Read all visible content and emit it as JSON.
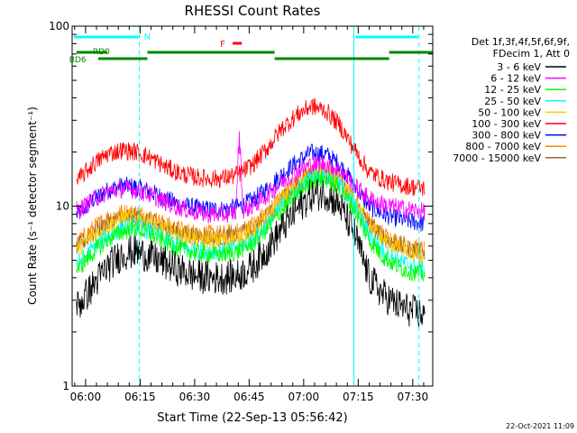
{
  "chart_data": {
    "type": "line",
    "title": "RHESSI Count Rates",
    "xlabel": "Start Time (22-Sep-13 05:56:42)",
    "ylabel": "Count Rate (s⁻¹ detector segment⁻¹)",
    "yscale": "log",
    "ylim": [
      1,
      100
    ],
    "y_ticks": [
      1,
      10,
      100
    ],
    "y_tick_labels": [
      "1",
      "10",
      "100"
    ],
    "xlim_minutes": [
      -3.7,
      95.5
    ],
    "x_ticks_minutes": [
      0,
      15,
      30,
      45,
      60,
      75,
      90
    ],
    "x_tick_labels": [
      "06:00",
      "06:15",
      "06:30",
      "06:45",
      "07:00",
      "07:15",
      "07:30"
    ],
    "legend": {
      "placement": "right",
      "header1": "Det 1f,3f,4f,5f,6f,9f,",
      "header2": "FDecim 1, Att 0"
    },
    "x_minutes": [
      -2,
      2,
      6,
      10,
      14,
      18,
      22,
      26,
      30,
      34,
      38,
      42,
      46,
      50,
      54,
      58,
      62,
      66,
      70,
      74,
      78,
      82,
      86,
      90,
      93
    ],
    "series": [
      {
        "name": "3 - 6 keV",
        "color": "#000000",
        "values": [
          2.8,
          3.6,
          4.6,
          5.4,
          5.6,
          5.2,
          4.8,
          4.4,
          4.1,
          4.0,
          4.0,
          4.1,
          4.6,
          5.8,
          7.5,
          9.5,
          11.5,
          11.8,
          10.0,
          7.0,
          4.0,
          3.2,
          2.8,
          2.6,
          2.5
        ]
      },
      {
        "name": "6 - 12 keV",
        "color": "#ff00ff",
        "values": [
          9.5,
          10.8,
          12.0,
          12.5,
          12.3,
          11.5,
          10.5,
          9.8,
          9.3,
          9.0,
          9.0,
          9.3,
          10.0,
          11.5,
          13.5,
          15.5,
          17.0,
          17.2,
          15.8,
          13.0,
          11.0,
          10.2,
          9.8,
          9.5,
          9.3
        ]
      },
      {
        "name": "12 - 25 keV",
        "color": "#00ff00",
        "values": [
          4.5,
          5.5,
          6.5,
          7.2,
          7.5,
          7.0,
          6.3,
          5.8,
          5.5,
          5.4,
          5.4,
          5.6,
          6.2,
          7.5,
          9.5,
          11.5,
          13.8,
          14.2,
          12.5,
          9.5,
          6.5,
          5.2,
          4.6,
          4.3,
          4.2
        ]
      },
      {
        "name": "25 - 50 keV",
        "color": "#00ffff",
        "values": [
          4.8,
          5.8,
          6.8,
          7.5,
          7.8,
          7.2,
          6.5,
          6.0,
          5.7,
          5.6,
          5.6,
          5.8,
          6.5,
          7.8,
          10.0,
          12.0,
          14.5,
          15.0,
          13.0,
          10.0,
          7.0,
          5.6,
          5.0,
          4.6,
          4.4
        ]
      },
      {
        "name": "50 - 100 keV",
        "color": "#ffcc00",
        "values": [
          5.8,
          6.8,
          7.8,
          8.5,
          8.7,
          8.1,
          7.4,
          6.9,
          6.6,
          6.5,
          6.5,
          6.7,
          7.4,
          8.6,
          10.8,
          12.8,
          15.0,
          15.3,
          13.5,
          10.5,
          7.8,
          6.5,
          5.9,
          5.5,
          5.3
        ]
      },
      {
        "name": "100 - 300 keV",
        "color": "#ff0000",
        "values": [
          14.0,
          17.0,
          19.5,
          20.5,
          20.0,
          18.5,
          16.5,
          15.2,
          14.5,
          14.2,
          14.3,
          15.0,
          17.0,
          21.0,
          27.0,
          32.0,
          36.0,
          34.0,
          28.0,
          20.5,
          15.5,
          14.0,
          13.2,
          12.8,
          12.6
        ]
      },
      {
        "name": "300 - 800 keV",
        "color": "#0000ff",
        "values": [
          9.0,
          10.8,
          12.2,
          13.0,
          12.8,
          12.0,
          11.0,
          10.2,
          9.8,
          9.6,
          9.6,
          9.9,
          10.8,
          12.5,
          15.0,
          17.5,
          19.8,
          19.5,
          17.0,
          13.0,
          10.0,
          9.0,
          8.5,
          8.2,
          8.0
        ]
      },
      {
        "name": "800 - 7000 keV",
        "color": "#ff8800",
        "values": [
          6.3,
          7.5,
          8.6,
          9.2,
          9.2,
          8.6,
          7.9,
          7.4,
          7.1,
          7.0,
          7.0,
          7.2,
          7.9,
          9.2,
          11.3,
          13.4,
          15.5,
          15.8,
          14.0,
          11.0,
          8.2,
          6.9,
          6.3,
          5.9,
          5.7
        ]
      },
      {
        "name": "7000 - 15000 keV",
        "color": "#996633",
        "values": [
          6.0,
          7.0,
          8.0,
          8.6,
          8.7,
          8.2,
          7.6,
          7.1,
          6.8,
          6.7,
          6.7,
          6.9,
          7.5,
          8.8,
          10.8,
          12.8,
          14.8,
          15.0,
          13.3,
          10.5,
          7.9,
          6.7,
          6.1,
          5.7,
          5.5
        ]
      }
    ],
    "flare_spike": {
      "x_minutes": 42.3,
      "series": "6 - 12 keV",
      "value": 24
    },
    "annotations": {
      "night_label": "N",
      "saa_label": "F",
      "rd0_label": "RD0",
      "bd6_label": "BD6",
      "night_intervals_minutes": [
        [
          -3.7,
          14.8
        ],
        [
          73.8,
          91.7
        ]
      ],
      "saa_markers_minutes": [
        [
          37.5,
          40.0
        ]
      ],
      "rd0_segments_minutes": [
        [
          -2.5,
          6.0
        ],
        [
          17.0,
          52.0
        ],
        [
          83.5,
          95.5
        ]
      ],
      "bd6_segments_minutes": [
        [
          3.5,
          17.0
        ],
        [
          52.0,
          83.5
        ]
      ],
      "bd6_start_minutes": -3.5
    }
  },
  "footer": {
    "timestamp": "22-Oct-2021 11:09"
  }
}
